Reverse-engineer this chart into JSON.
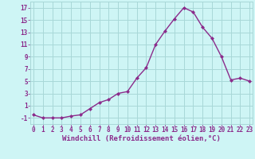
{
  "x": [
    0,
    1,
    2,
    3,
    4,
    5,
    6,
    7,
    8,
    9,
    10,
    11,
    12,
    13,
    14,
    15,
    16,
    17,
    18,
    19,
    20,
    21,
    22,
    23
  ],
  "y": [
    -0.5,
    -1.0,
    -1.0,
    -1.0,
    -0.7,
    -0.5,
    0.5,
    1.5,
    2.0,
    3.0,
    3.3,
    5.5,
    7.2,
    11.0,
    13.2,
    15.2,
    17.0,
    16.3,
    13.8,
    12.0,
    9.0,
    5.2,
    5.5,
    5.0
  ],
  "line_color": "#8B2B8B",
  "marker": "D",
  "marker_size": 2.0,
  "bg_color": "#cef5f5",
  "grid_color": "#a8d8d8",
  "xlabel": "Windchill (Refroidissement éolien,°C)",
  "xlabel_fontsize": 6.5,
  "yticks": [
    -1,
    1,
    3,
    5,
    7,
    9,
    11,
    13,
    15,
    17
  ],
  "xticks": [
    0,
    1,
    2,
    3,
    4,
    5,
    6,
    7,
    8,
    9,
    10,
    11,
    12,
    13,
    14,
    15,
    16,
    17,
    18,
    19,
    20,
    21,
    22,
    23
  ],
  "ylim": [
    -2,
    18
  ],
  "xlim": [
    -0.3,
    23.3
  ],
  "tick_color": "#8B2B8B",
  "tick_fontsize": 5.5,
  "line_width": 1.0
}
